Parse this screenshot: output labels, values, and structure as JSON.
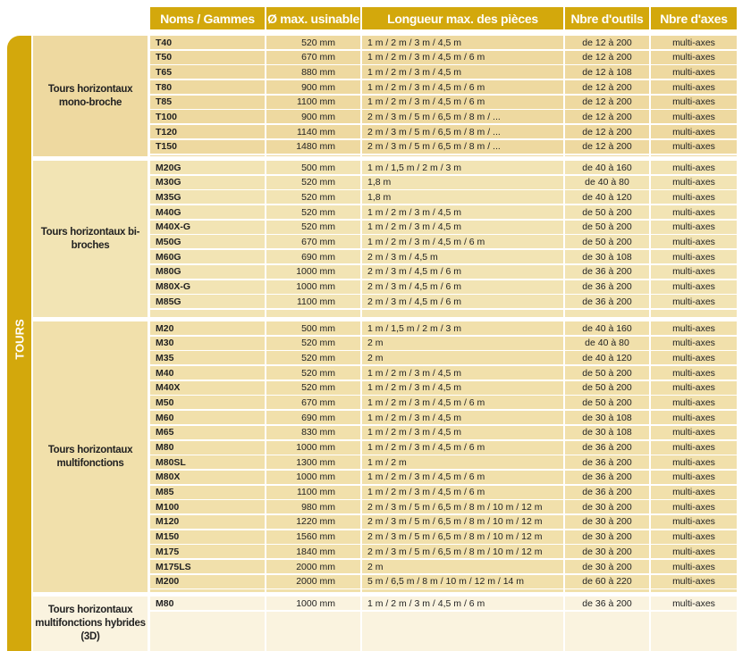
{
  "headers": [
    "Noms / Gammes",
    "Ø max. usinable",
    "Longueur max. des pièces",
    "Nbre d'outils",
    "Nbre d'axes"
  ],
  "side_label": "TOURS",
  "colors": {
    "accent": "#d3a80c",
    "group1": "#eed9a0",
    "group2": "#f2e4b4",
    "group3": "#f1e0ab",
    "group4": "#faf3df"
  },
  "groups": [
    {
      "category": "Tours horizontaux mono-broche",
      "rows": [
        [
          "T40",
          "520 mm",
          "1 m / 2 m / 3 m / 4,5 m",
          "de 12 à 200",
          "multi-axes"
        ],
        [
          "T50",
          "670 mm",
          "1 m / 2 m / 3 m / 4,5 m / 6 m",
          "de 12 à 200",
          "multi-axes"
        ],
        [
          "T65",
          "880 mm",
          "1 m / 2 m / 3 m / 4,5 m",
          "de 12 à 108",
          "multi-axes"
        ],
        [
          "T80",
          "900 mm",
          "1 m / 2 m / 3 m / 4,5 m / 6 m",
          "de 12 à 200",
          "multi-axes"
        ],
        [
          "T85",
          "1100 mm",
          "1 m / 2 m / 3 m / 4,5 m / 6 m",
          "de 12 à 200",
          "multi-axes"
        ],
        [
          "T100",
          "900 mm",
          "2 m / 3 m / 5 m / 6,5 m / 8 m / ...",
          "de 12 à 200",
          "multi-axes"
        ],
        [
          "T120",
          "1140 mm",
          "2 m / 3 m / 5 m / 6,5 m / 8 m / ...",
          "de 12 à 200",
          "multi-axes"
        ],
        [
          "T150",
          "1480 mm",
          "2 m / 3 m / 5 m / 6,5 m / 8 m / ...",
          "de 12 à 200",
          "multi-axes"
        ]
      ]
    },
    {
      "category": "Tours horizontaux bi-broches",
      "rows": [
        [
          "M20G",
          "500 mm",
          "1 m / 1,5 m / 2 m / 3 m",
          "de 40 à 160",
          "multi-axes"
        ],
        [
          "M30G",
          "520 mm",
          "1,8 m",
          "de 40 à 80",
          "multi-axes"
        ],
        [
          "M35G",
          "520 mm",
          "1,8 m",
          "de 40 à 120",
          "multi-axes"
        ],
        [
          "M40G",
          "520 mm",
          "1 m / 2 m / 3 m / 4,5 m",
          "de 50 à 200",
          "multi-axes"
        ],
        [
          "M40X-G",
          "520 mm",
          "1 m / 2 m / 3 m / 4,5 m",
          "de 50 à 200",
          "multi-axes"
        ],
        [
          "M50G",
          "670 mm",
          "1 m / 2 m / 3 m / 4,5 m / 6 m",
          "de 50 à 200",
          "multi-axes"
        ],
        [
          "M60G",
          "690 mm",
          "2 m / 3 m / 4,5 m",
          "de 30 à 108",
          "multi-axes"
        ],
        [
          "M80G",
          "1000 mm",
          "2 m / 3 m / 4,5 m / 6 m",
          "de 36 à 200",
          "multi-axes"
        ],
        [
          "M80X-G",
          "1000 mm",
          "2 m / 3 m / 4,5 m / 6 m",
          "de 36 à 200",
          "multi-axes"
        ],
        [
          "M85G",
          "1100 mm",
          "2 m / 3 m / 4,5 m / 6 m",
          "de 36 à 200",
          "multi-axes"
        ]
      ]
    },
    {
      "category": "Tours horizontaux multifonctions",
      "rows": [
        [
          "M20",
          "500 mm",
          "1 m / 1,5 m / 2 m / 3 m",
          "de 40 à 160",
          "multi-axes"
        ],
        [
          "M30",
          "520 mm",
          "2 m",
          "de 40 à 80",
          "multi-axes"
        ],
        [
          "M35",
          "520 mm",
          "2 m",
          "de 40 à 120",
          "multi-axes"
        ],
        [
          "M40",
          "520 mm",
          "1 m / 2 m / 3 m / 4,5 m",
          "de 50 à 200",
          "multi-axes"
        ],
        [
          "M40X",
          "520 mm",
          "1 m / 2 m / 3 m / 4,5 m",
          "de 50 à 200",
          "multi-axes"
        ],
        [
          "M50",
          "670 mm",
          "1 m / 2 m / 3 m / 4,5 m / 6 m",
          "de 50 à 200",
          "multi-axes"
        ],
        [
          "M60",
          "690 mm",
          "1 m / 2 m / 3 m / 4,5 m",
          "de 30 à 108",
          "multi-axes"
        ],
        [
          "M65",
          "830 mm",
          "1 m / 2 m / 3 m / 4,5 m",
          "de 30 à 108",
          "multi-axes"
        ],
        [
          "M80",
          "1000 mm",
          "1 m / 2 m / 3 m / 4,5 m / 6 m",
          "de 36 à 200",
          "multi-axes"
        ],
        [
          "M80SL",
          "1300 mm",
          "1 m / 2 m",
          "de 36 à 200",
          "multi-axes"
        ],
        [
          "M80X",
          "1000 mm",
          "1 m / 2 m / 3 m / 4,5 m / 6 m",
          "de 36 à 200",
          "multi-axes"
        ],
        [
          "M85",
          "1100 mm",
          "1 m / 2 m / 3 m / 4,5 m / 6 m",
          "de 36 à 200",
          "multi-axes"
        ],
        [
          "M100",
          "980 mm",
          "2 m / 3 m / 5 m / 6,5 m / 8 m / 10 m / 12 m",
          "de 30 à 200",
          "multi-axes"
        ],
        [
          "M120",
          "1220 mm",
          "2 m / 3 m / 5 m / 6,5 m / 8 m / 10 m / 12 m",
          "de 30 à 200",
          "multi-axes"
        ],
        [
          "M150",
          "1560 mm",
          "2 m / 3 m / 5 m / 6,5 m / 8 m / 10 m / 12 m",
          "de 30 à 200",
          "multi-axes"
        ],
        [
          "M175",
          "1840 mm",
          "2 m / 3 m / 5 m / 6,5 m / 8 m / 10 m / 12 m",
          "de 30 à 200",
          "multi-axes"
        ],
        [
          "M175LS",
          "2000 mm",
          "2 m",
          "de 30 à 200",
          "multi-axes"
        ],
        [
          "M200",
          "2000 mm",
          "5 m / 6,5 m / 8 m / 10 m / 12 m / 14 m",
          "de 60 à 220",
          "multi-axes"
        ]
      ]
    },
    {
      "category": "Tours horizontaux multifonctions hybrides (3D)",
      "rows": [
        [
          "M80",
          "1000 mm",
          "1 m / 2 m / 3 m / 4,5 m / 6 m",
          "de 36 à 200",
          "multi-axes"
        ]
      ]
    }
  ]
}
